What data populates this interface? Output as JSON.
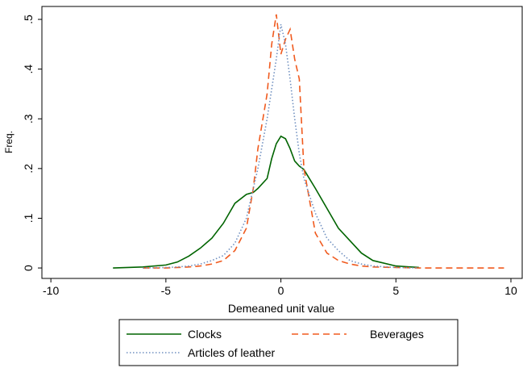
{
  "chart_data": {
    "type": "line",
    "x_label": "Demeaned unit value",
    "y_label": "Freq.",
    "x": [
      -7.3,
      -6,
      -5,
      -4.5,
      -4,
      -3.5,
      -3,
      -2.5,
      -2,
      -1.5,
      -1.2,
      -1,
      -0.6,
      -0.4,
      -0.2,
      0,
      0.2,
      0.4,
      0.6,
      0.8,
      1,
      1.5,
      2,
      2.5,
      3,
      3.5,
      4,
      5,
      6,
      7,
      8,
      9.7
    ],
    "series": [
      {
        "name": "Clocks",
        "color": "#006400",
        "dash": "none",
        "values": [
          0,
          0.002,
          0.006,
          0.012,
          0.024,
          0.04,
          0.06,
          0.09,
          0.13,
          0.148,
          0.152,
          0.16,
          0.18,
          0.22,
          0.25,
          0.265,
          0.26,
          0.24,
          0.215,
          0.205,
          0.198,
          0.16,
          0.12,
          0.08,
          0.055,
          0.03,
          0.015,
          0.004,
          0.001,
          null,
          null,
          null
        ]
      },
      {
        "name": "Beverages",
        "color": "#f05a1e",
        "dash": "dashed",
        "values": [
          null,
          0,
          0,
          0.001,
          0.002,
          0.004,
          0.008,
          0.015,
          0.035,
          0.08,
          0.16,
          0.24,
          0.35,
          0.45,
          0.51,
          0.43,
          0.46,
          0.48,
          0.42,
          0.38,
          0.2,
          0.07,
          0.03,
          0.015,
          0.008,
          0.004,
          0.002,
          0.001,
          0,
          0,
          0,
          0
        ]
      },
      {
        "name": "Articles of leather",
        "color": "#7090c0",
        "dash": "dotted",
        "values": [
          null,
          0,
          0.001,
          0.002,
          0.004,
          0.008,
          0.015,
          0.025,
          0.05,
          0.1,
          0.16,
          0.2,
          0.3,
          0.36,
          0.42,
          0.49,
          0.45,
          0.38,
          0.3,
          0.23,
          0.18,
          0.11,
          0.06,
          0.035,
          0.015,
          0.008,
          0.004,
          0.001,
          0,
          null,
          null,
          null
        ]
      }
    ],
    "xlim": [
      -10.39,
      10.49
    ],
    "ylim": [
      -0.021,
      0.526
    ],
    "xticks": [
      -10,
      -5,
      0,
      5,
      10
    ],
    "yticks": [
      0,
      {
        "value": 0.1,
        "label": ".1"
      },
      {
        "value": 0.2,
        "label": ".2"
      },
      {
        "value": 0.3,
        "label": ".3"
      },
      {
        "value": 0.4,
        "label": ".4"
      },
      {
        "value": 0.5,
        "label": ".5"
      }
    ]
  }
}
